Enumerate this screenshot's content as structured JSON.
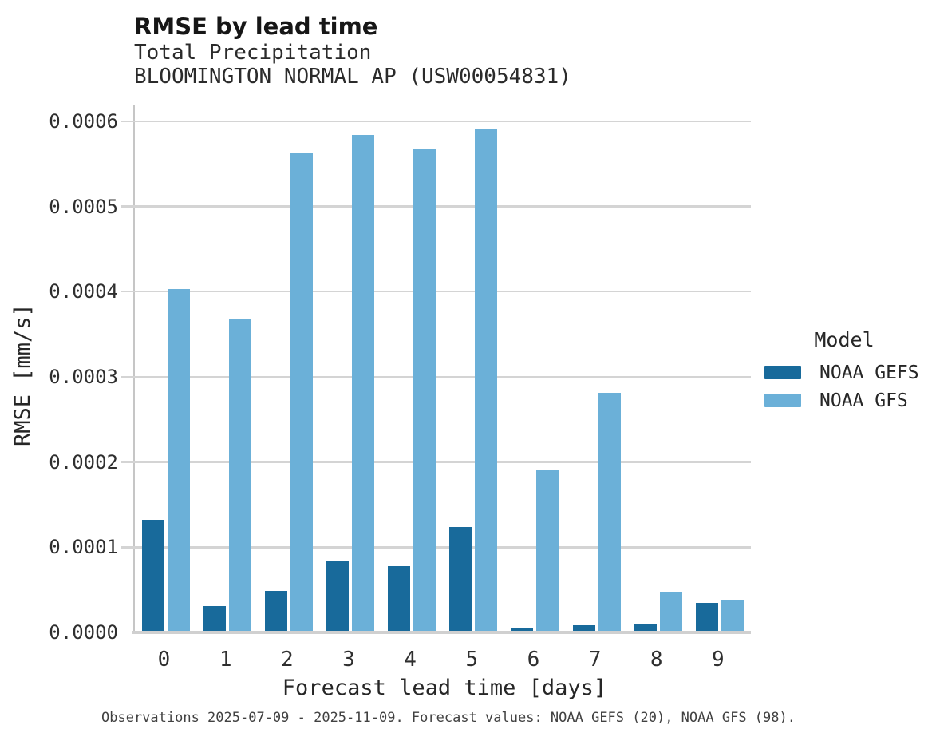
{
  "header": {
    "title": "RMSE by lead time",
    "subtitle_line1": "Total Precipitation",
    "subtitle_line2": "BLOOMINGTON NORMAL AP (USW00054831)"
  },
  "chart_data": {
    "type": "bar",
    "title": "RMSE by lead time",
    "subtitle": [
      "Total Precipitation",
      "BLOOMINGTON NORMAL AP (USW00054831)"
    ],
    "categories": [
      "0",
      "1",
      "2",
      "3",
      "4",
      "5",
      "6",
      "7",
      "8",
      "9"
    ],
    "series": [
      {
        "name": "NOAA GEFS",
        "color": "#186a9b",
        "values": [
          0.000132,
          3.1e-05,
          4.9e-05,
          8.4e-05,
          7.8e-05,
          0.000124,
          6e-06,
          8e-06,
          1e-05,
          3.5e-05
        ]
      },
      {
        "name": "NOAA GFS",
        "color": "#6bb0d8",
        "values": [
          0.000403,
          0.000367,
          0.000563,
          0.000584,
          0.000567,
          0.00059,
          0.00019,
          0.000281,
          4.7e-05,
          3.8e-05
        ]
      }
    ],
    "xlabel": "Forecast lead time [days]",
    "ylabel": "RMSE [mm/s]",
    "ylim": [
      0,
      0.0006
    ],
    "ytick_labels": [
      "0.0000",
      "0.0001",
      "0.0002",
      "0.0003",
      "0.0004",
      "0.0005",
      "0.0006"
    ],
    "ytick_values": [
      0,
      0.0001,
      0.0002,
      0.0003,
      0.0004,
      0.0005,
      0.0006
    ],
    "legend_title": "Model",
    "legend_position": "right",
    "grid": true
  },
  "footer": {
    "text": "Observations 2025-07-09 - 2025-11-09. Forecast values: NOAA GEFS (20), NOAA GFS (98)."
  },
  "colors": {
    "gefs": "#186a9b",
    "gfs": "#6bb0d8",
    "gridline": "#d4d4d4",
    "spine": "#c6c6c6"
  }
}
